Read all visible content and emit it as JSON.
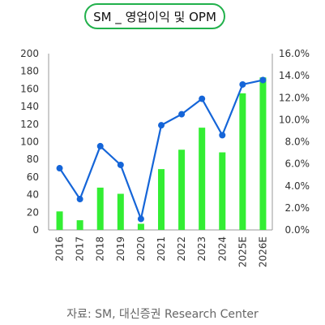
{
  "title": "SM _ 영업이익 및 OPM",
  "source": "자료: SM, 대신증권 Research Center",
  "colors": {
    "bar": "#33ee33",
    "line": "#1565d8",
    "pill_border": "#22b14c"
  },
  "chart_data": {
    "type": "bar+line",
    "categories": [
      "2016",
      "2017",
      "2018",
      "2019",
      "2020",
      "2021",
      "2022",
      "2023",
      "2024",
      "2025E",
      "2026E"
    ],
    "series": [
      {
        "values": [
          21,
          11,
          48,
          41,
          7,
          69,
          91,
          116,
          88,
          155,
          173
        ]
      },
      {
        "values": [
          5.6,
          2.8,
          7.6,
          5.9,
          1.0,
          9.5,
          10.5,
          11.9,
          8.6,
          13.2,
          13.6
        ]
      }
    ],
    "y_left": {
      "min": 0,
      "max": 200,
      "ticks": [
        "0",
        "20",
        "40",
        "60",
        "80",
        "100",
        "120",
        "140",
        "160",
        "180",
        "200"
      ]
    },
    "y_right": {
      "min": 0,
      "max": 16,
      "ticks": [
        "0.0%",
        "2.0%",
        "4.0%",
        "6.0%",
        "8.0%",
        "10.0%",
        "12.0%",
        "14.0%",
        "16.0%"
      ]
    },
    "grid": false,
    "legend": "none"
  }
}
